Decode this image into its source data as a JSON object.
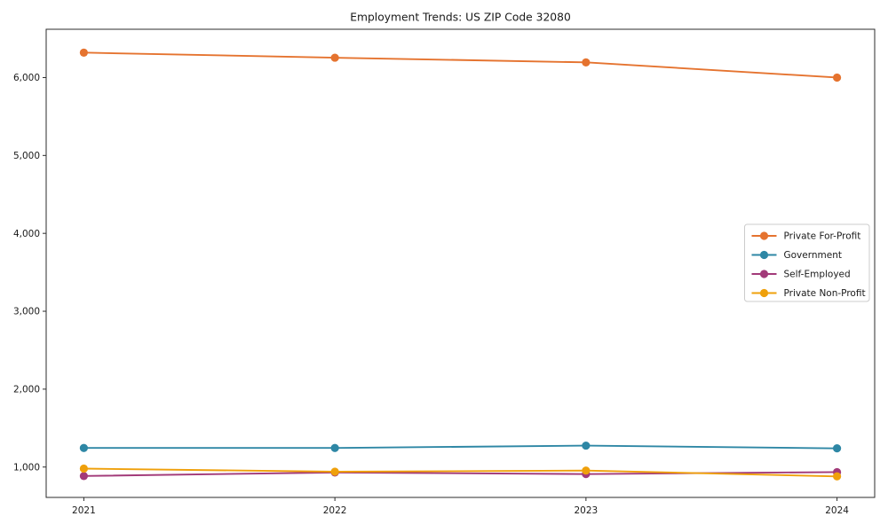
{
  "chart_data": {
    "type": "line",
    "title": "Employment Trends: US ZIP Code 32080",
    "categories": [
      "2021",
      "2022",
      "2023",
      "2024"
    ],
    "series": [
      {
        "name": "Private For-Profit",
        "color": "#e5732f",
        "values": [
          6320,
          6255,
          6195,
          6000
        ]
      },
      {
        "name": "Government",
        "color": "#2e87a5",
        "values": [
          1245,
          1245,
          1275,
          1240
        ]
      },
      {
        "name": "Self-Employed",
        "color": "#a23a79",
        "values": [
          885,
          930,
          910,
          935
        ]
      },
      {
        "name": "Private Non-Profit",
        "color": "#efa00b",
        "values": [
          980,
          940,
          955,
          880
        ]
      }
    ],
    "xlabel": "",
    "ylabel": "",
    "ylim": [
      610,
      6620
    ],
    "yticks": [
      1000,
      2000,
      3000,
      4000,
      5000,
      6000
    ],
    "ytick_labels": [
      "1,000",
      "2,000",
      "3,000",
      "4,000",
      "5,000",
      "6,000"
    ],
    "grid": false,
    "legend": {
      "position": "right-center",
      "background": "#ffffff",
      "border_color": "#cccccc"
    },
    "colors": {
      "spine": "#2b2b2b",
      "text": "#1a1a1a"
    }
  }
}
